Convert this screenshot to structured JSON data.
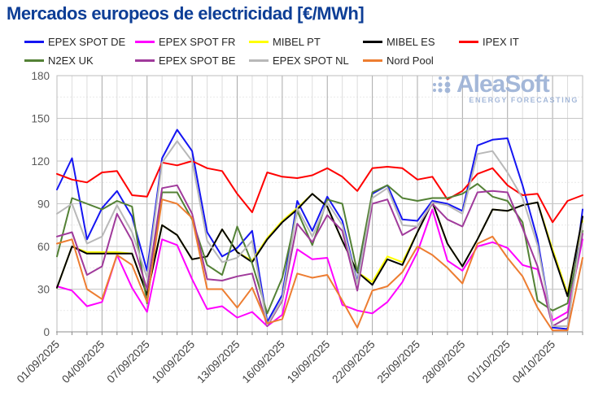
{
  "title": "Mercados europeos de electricidad [€/MWh]",
  "watermark": {
    "name": "AleaSoft",
    "tagline": "ENERGY FORECASTING"
  },
  "axis": {
    "y_tick_labels": [
      "180",
      "150",
      "120",
      "90",
      "60",
      "30",
      "0"
    ],
    "x_tick_labels": [
      "01/09/2025",
      "04/09/2025",
      "07/09/2025",
      "10/09/2025",
      "13/09/2025",
      "16/09/2025",
      "19/09/2025",
      "22/09/2025",
      "25/09/2025",
      "28/09/2025",
      "01/10/2025",
      "04/10/2025"
    ]
  },
  "chart_data": {
    "type": "line",
    "title": "Mercados europeos de electricidad [€/MWh]",
    "xlabel": "",
    "ylabel": "€/MWh",
    "ylim": [
      0,
      180
    ],
    "y_ticks": [
      0,
      30,
      60,
      90,
      120,
      150,
      180
    ],
    "grid": true,
    "legend_position": "top",
    "x": [
      "01/09/2025",
      "02/09/2025",
      "03/09/2025",
      "04/09/2025",
      "05/09/2025",
      "06/09/2025",
      "07/09/2025",
      "08/09/2025",
      "09/09/2025",
      "10/09/2025",
      "11/09/2025",
      "12/09/2025",
      "13/09/2025",
      "14/09/2025",
      "15/09/2025",
      "16/09/2025",
      "17/09/2025",
      "18/09/2025",
      "19/09/2025",
      "20/09/2025",
      "21/09/2025",
      "22/09/2025",
      "23/09/2025",
      "24/09/2025",
      "25/09/2025",
      "26/09/2025",
      "27/09/2025",
      "28/09/2025",
      "29/09/2025",
      "30/09/2025",
      "01/10/2025",
      "02/10/2025",
      "03/10/2025",
      "04/10/2025",
      "05/10/2025",
      "06/10/2025"
    ],
    "x_labeled_every": 3,
    "series": [
      {
        "name": "EPEX SPOT DE",
        "color": "#1515F2",
        "values": [
          100,
          122,
          65,
          87,
          99,
          81,
          43,
          122,
          142,
          127,
          70,
          53,
          59,
          71,
          7,
          26,
          92,
          71,
          95,
          78,
          35,
          97,
          103,
          79,
          78,
          92,
          90,
          85,
          131,
          135,
          136,
          103,
          65,
          3,
          2,
          86
        ]
      },
      {
        "name": "EPEX SPOT FR",
        "color": "#FF00FF",
        "values": [
          32,
          29,
          18,
          21,
          54,
          31,
          14,
          65,
          61,
          37,
          16,
          18,
          10,
          14,
          4,
          12,
          58,
          51,
          52,
          19,
          15,
          13,
          21,
          35,
          56,
          86,
          50,
          43,
          60,
          63,
          59,
          47,
          44,
          8,
          14,
          65
        ]
      },
      {
        "name": "MIBEL PT",
        "color": "#FFFF00",
        "values": [
          31,
          60,
          56,
          56,
          56,
          55,
          26,
          75,
          68,
          51,
          53,
          72,
          56,
          50,
          66,
          78,
          87,
          97,
          88,
          64,
          42,
          35,
          53,
          49,
          70,
          91,
          62,
          46,
          65,
          86,
          85,
          89,
          91,
          58,
          27,
          78
        ]
      },
      {
        "name": "MIBEL ES",
        "color": "#000000",
        "values": [
          31,
          60,
          55,
          55,
          55,
          55,
          26,
          75,
          68,
          51,
          53,
          72,
          56,
          49,
          65,
          77,
          86,
          97,
          88,
          64,
          42,
          33,
          51,
          47,
          70,
          91,
          62,
          46,
          65,
          86,
          85,
          89,
          91,
          56,
          25,
          81
        ]
      },
      {
        "name": "IPEX IT",
        "color": "#FF0000",
        "values": [
          111,
          107,
          105,
          112,
          113,
          96,
          95,
          119,
          117,
          120,
          115,
          113,
          97,
          84,
          112,
          109,
          108,
          110,
          115,
          109,
          99,
          115,
          116,
          115,
          107,
          109,
          93,
          99,
          111,
          115,
          103,
          96,
          97,
          77,
          92,
          96
        ]
      },
      {
        "name": "N2EX UK",
        "color": "#538135",
        "values": [
          53,
          94,
          90,
          86,
          92,
          88,
          20,
          98,
          98,
          79,
          47,
          40,
          74,
          48,
          13,
          38,
          85,
          61,
          93,
          90,
          42,
          98,
          103,
          94,
          92,
          94,
          94,
          97,
          104,
          95,
          92,
          77,
          22,
          15,
          20,
          71
        ]
      },
      {
        "name": "EPEX SPOT BE",
        "color": "#A03A9B",
        "values": [
          67,
          70,
          40,
          46,
          83,
          64,
          30,
          101,
          103,
          83,
          37,
          36,
          39,
          41,
          4,
          22,
          76,
          63,
          82,
          71,
          29,
          90,
          93,
          68,
          74,
          90,
          79,
          74,
          98,
          99,
          98,
          73,
          46,
          4,
          10,
          69
        ]
      },
      {
        "name": "EPEX SPOT NL",
        "color": "#B8B8B8",
        "values": [
          83,
          90,
          62,
          67,
          89,
          70,
          38,
          119,
          134,
          120,
          64,
          49,
          52,
          64,
          5,
          23,
          87,
          67,
          91,
          75,
          34,
          94,
          101,
          75,
          74,
          91,
          89,
          83,
          125,
          127,
          112,
          94,
          61,
          4,
          4,
          76
        ]
      },
      {
        "name": "Nord Pool",
        "color": "#ED7D31",
        "values": [
          62,
          65,
          30,
          23,
          54,
          47,
          21,
          93,
          90,
          80,
          30,
          30,
          17,
          31,
          6,
          9,
          41,
          38,
          40,
          22,
          3,
          29,
          32,
          42,
          60,
          54,
          45,
          34,
          62,
          67,
          52,
          39,
          17,
          1,
          1,
          52
        ]
      }
    ]
  }
}
